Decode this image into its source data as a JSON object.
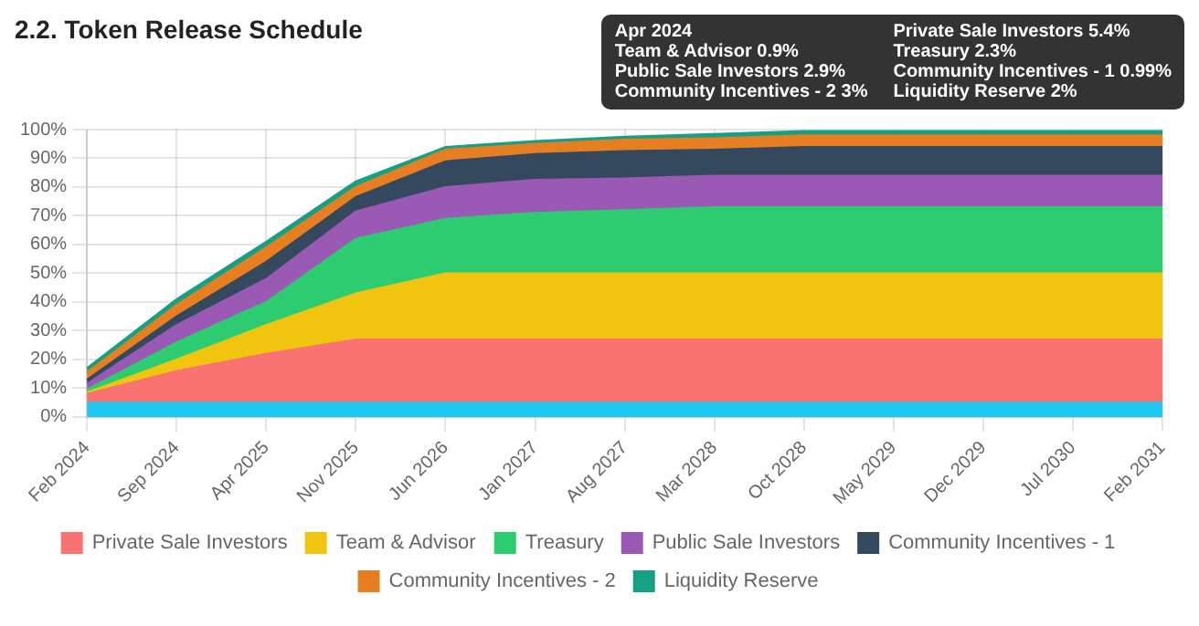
{
  "chart_data": {
    "type": "area",
    "title": "2.2. Token Release Schedule",
    "stacked": true,
    "grid": true,
    "legend": "bottom",
    "categories": [
      "Feb 2024",
      "Sep 2024",
      "Apr 2025",
      "Nov 2025",
      "Jun 2026",
      "Jan 2027",
      "Aug 2027",
      "Mar 2028",
      "Oct 2028",
      "May 2029",
      "Dec 2029",
      "Jul 2030",
      "Feb 2031"
    ],
    "ylim": [
      0,
      100
    ],
    "yticks": [
      {
        "value": 0,
        "label": "0%"
      },
      {
        "value": 10,
        "label": "10%"
      },
      {
        "value": 20,
        "label": "20%"
      },
      {
        "value": 30,
        "label": "30%"
      },
      {
        "value": 40,
        "label": "40%"
      },
      {
        "value": 50,
        "label": "50%"
      },
      {
        "value": 60,
        "label": "60%"
      },
      {
        "value": 70,
        "label": "70%"
      },
      {
        "value": 80,
        "label": "80%"
      },
      {
        "value": 90,
        "label": "90%"
      },
      {
        "value": 100,
        "label": "100%"
      }
    ],
    "series": [
      {
        "color": "#1fc8f2",
        "values": [
          5,
          5,
          5,
          5,
          5,
          5,
          5,
          5,
          5,
          5,
          5,
          5,
          5
        ]
      },
      {
        "name": "Private Sale Investors",
        "color": "#fa7373",
        "values": [
          3,
          11,
          17,
          22,
          22,
          22,
          22,
          22,
          22,
          22,
          22,
          22,
          22
        ]
      },
      {
        "name": "Team & Advisor",
        "color": "#f1c40f",
        "values": [
          0.5,
          4,
          10,
          16,
          23,
          23,
          23,
          23,
          23,
          23,
          23,
          23,
          23
        ]
      },
      {
        "name": "Treasury",
        "color": "#2ecc71",
        "values": [
          1,
          6,
          8,
          19,
          19,
          21,
          22,
          23,
          23,
          23,
          23,
          23,
          23
        ]
      },
      {
        "name": "Public Sale Investors",
        "color": "#9b59b6",
        "values": [
          2,
          6,
          8,
          9.5,
          11,
          11.5,
          11,
          11,
          11,
          11,
          11,
          11,
          11
        ]
      },
      {
        "name": "Community Incentives - 1",
        "color": "#34495e",
        "values": [
          1.5,
          3,
          6,
          5,
          9,
          9,
          9.5,
          9,
          10,
          10,
          10,
          10,
          10
        ]
      },
      {
        "name": "Community Incentives - 2",
        "color": "#e67e22",
        "values": [
          2.5,
          4,
          5,
          3.5,
          4,
          3.5,
          4,
          4,
          4,
          4,
          4,
          4,
          4
        ]
      },
      {
        "name": "Liquidity Reserve",
        "color": "#16a085",
        "values": [
          1.5,
          2,
          2,
          2,
          1,
          1,
          1,
          1.5,
          1.5,
          1.5,
          1.5,
          1.5,
          1.5
        ]
      }
    ],
    "annotations": [
      "Apr 2024",
      "Private Sale Investors 5.4%",
      "Team & Advisor 0.9%",
      "Treasury 2.3%",
      "Public Sale Investors 2.9%",
      "Community Incentives - 1 0.99%",
      "Community Incentives - 2 3%",
      "Liquidity Reserve 2%"
    ]
  }
}
